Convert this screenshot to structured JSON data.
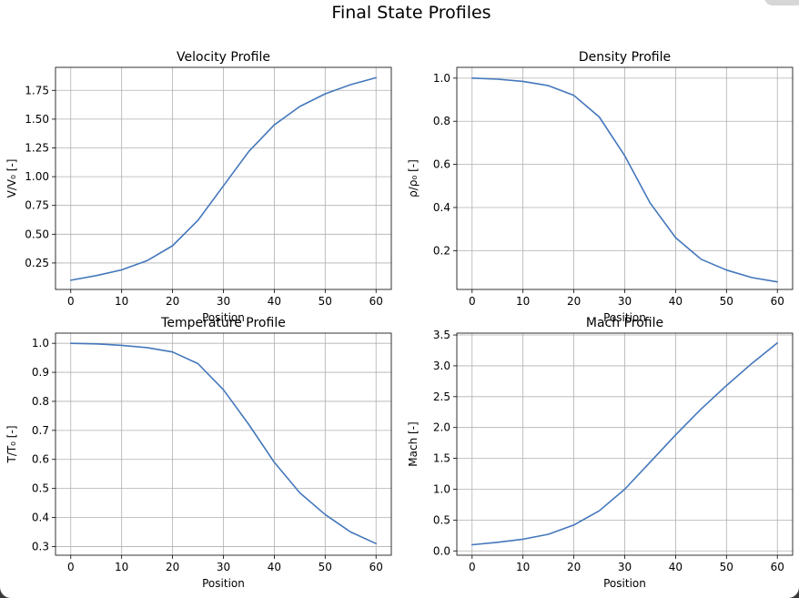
{
  "figure": {
    "title": "Final State Profiles",
    "line_color": "#4477bb"
  },
  "chart_data": [
    {
      "type": "line",
      "title": "Velocity Profile",
      "xlabel": "Position",
      "ylabel": "V/V₀ [-]",
      "xlim": [
        -3,
        63
      ],
      "ylim": [
        0.02,
        1.95
      ],
      "xticks": [
        0,
        10,
        20,
        30,
        40,
        50,
        60
      ],
      "yticks": [
        0.25,
        0.5,
        0.75,
        1.0,
        1.25,
        1.5,
        1.75
      ],
      "ytick_labels": [
        "0.25",
        "0.50",
        "0.75",
        "1.00",
        "1.25",
        "1.50",
        "1.75"
      ],
      "grid": true,
      "x": [
        0,
        5,
        10,
        15,
        20,
        25,
        30,
        35,
        40,
        45,
        50,
        55,
        60
      ],
      "y": [
        0.1,
        0.14,
        0.19,
        0.27,
        0.4,
        0.62,
        0.92,
        1.22,
        1.45,
        1.61,
        1.72,
        1.8,
        1.86
      ]
    },
    {
      "type": "line",
      "title": "Density Profile",
      "xlabel": "Position",
      "ylabel": "ρ/ρ₀ [-]",
      "xlim": [
        -3,
        63
      ],
      "ylim": [
        0.02,
        1.05
      ],
      "xticks": [
        0,
        10,
        20,
        30,
        40,
        50,
        60
      ],
      "yticks": [
        0.2,
        0.4,
        0.6,
        0.8,
        1.0
      ],
      "ytick_labels": [
        "0.2",
        "0.4",
        "0.6",
        "0.8",
        "1.0"
      ],
      "grid": true,
      "x": [
        0,
        5,
        10,
        15,
        20,
        25,
        30,
        35,
        40,
        45,
        50,
        55,
        60
      ],
      "y": [
        1.0,
        0.995,
        0.985,
        0.965,
        0.92,
        0.82,
        0.64,
        0.42,
        0.26,
        0.16,
        0.11,
        0.075,
        0.055
      ]
    },
    {
      "type": "line",
      "title": "Temperature Profile",
      "xlabel": "Position",
      "ylabel": "T/T₀ [-]",
      "xlim": [
        -3,
        63
      ],
      "ylim": [
        0.27,
        1.035
      ],
      "xticks": [
        0,
        10,
        20,
        30,
        40,
        50,
        60
      ],
      "yticks": [
        0.3,
        0.4,
        0.5,
        0.6,
        0.7,
        0.8,
        0.9,
        1.0
      ],
      "ytick_labels": [
        "0.3",
        "0.4",
        "0.5",
        "0.6",
        "0.7",
        "0.8",
        "0.9",
        "1.0"
      ],
      "grid": true,
      "x": [
        0,
        5,
        10,
        15,
        20,
        25,
        30,
        35,
        40,
        45,
        50,
        55,
        60
      ],
      "y": [
        1.0,
        0.998,
        0.993,
        0.985,
        0.97,
        0.93,
        0.84,
        0.72,
        0.59,
        0.485,
        0.41,
        0.35,
        0.31
      ]
    },
    {
      "type": "line",
      "title": "Mach Profile",
      "xlabel": "Position",
      "ylabel": "Mach [-]",
      "xlim": [
        -3,
        63
      ],
      "ylim": [
        -0.07,
        3.53
      ],
      "xticks": [
        0,
        10,
        20,
        30,
        40,
        50,
        60
      ],
      "yticks": [
        0.0,
        0.5,
        1.0,
        1.5,
        2.0,
        2.5,
        3.0,
        3.5
      ],
      "ytick_labels": [
        "0.0",
        "0.5",
        "1.0",
        "1.5",
        "2.0",
        "2.5",
        "3.0",
        "3.5"
      ],
      "grid": true,
      "x": [
        0,
        5,
        10,
        15,
        20,
        25,
        30,
        35,
        40,
        45,
        50,
        55,
        60
      ],
      "y": [
        0.1,
        0.14,
        0.19,
        0.27,
        0.42,
        0.65,
        1.0,
        1.44,
        1.88,
        2.3,
        2.68,
        3.04,
        3.37
      ]
    }
  ]
}
